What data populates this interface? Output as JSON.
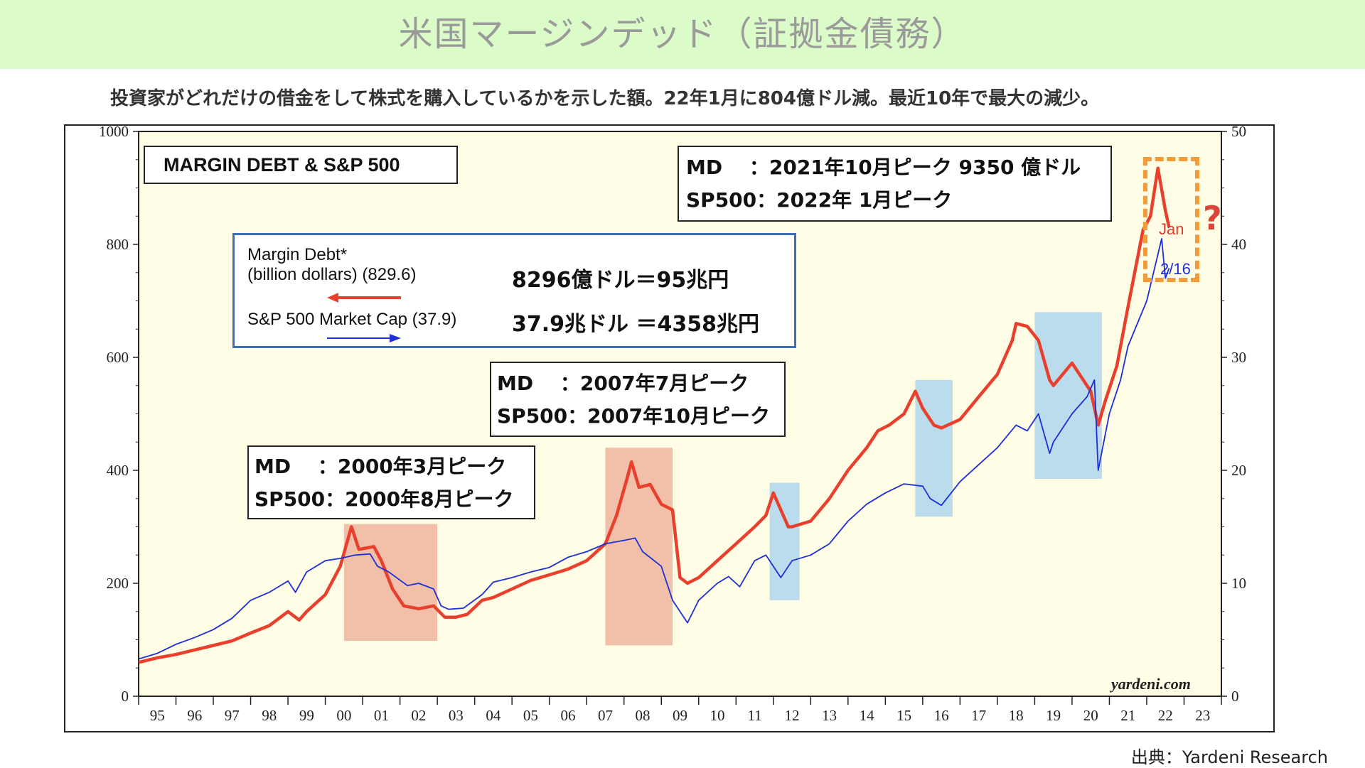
{
  "header": {
    "title": "米国マージンデッド（証拠金債務）",
    "subtitle": "投資家がどれだけの借金をして株式を購入しているかを示した額。22年1月に804億ドル減。最近10年で最大の減少。"
  },
  "footer": {
    "source": "出典：Yardeni Research"
  },
  "annotations": {
    "box_2021": {
      "line1": "MD　 ：2021年10月ピーク 9350 億ドル",
      "line2": "SP500：2022年  1月ピーク"
    },
    "box_2007": {
      "line1": "MD　 ：2007年7月ピーク",
      "line2": "SP500：2007年10月ピーク"
    },
    "box_2000": {
      "line1": "MD　 ：2000年3月ピーク",
      "line2": "SP500：2000年8月ピーク"
    },
    "legend": {
      "margin_label1": "Margin Debt*",
      "margin_label2": "(billion dollars) (829.6)",
      "margin_big": "8296億ドル＝95兆円",
      "sp_label": "S&P 500 Market Cap (37.9)",
      "sp_big": "37.9兆ドル ＝4358兆円"
    },
    "jan": "Jan",
    "date_216": "2/16",
    "question": "?",
    "watermark": "yardeni.com"
  },
  "colors": {
    "margin_debt": "#e8402c",
    "sp500": "#1d2fd6",
    "recession_band": "#f0b49e",
    "correction_band": "#a9d3ee",
    "plot_bg": "#fffde6",
    "highlight": "#f29b38"
  },
  "chart_data": {
    "type": "line",
    "title": "MARGIN DEBT & S&P 500",
    "x_ticks": [
      "95",
      "96",
      "97",
      "98",
      "99",
      "00",
      "01",
      "02",
      "03",
      "04",
      "05",
      "06",
      "07",
      "08",
      "09",
      "10",
      "11",
      "12",
      "13",
      "14",
      "15",
      "16",
      "17",
      "18",
      "19",
      "20",
      "21",
      "22",
      "23"
    ],
    "xlim": [
      1994.5,
      2023.5
    ],
    "y_left": {
      "lim": [
        0,
        1000
      ],
      "ticks": [
        0,
        200,
        400,
        600,
        800,
        1000
      ]
    },
    "y_right": {
      "lim": [
        0,
        50
      ],
      "ticks": [
        0,
        10,
        20,
        30,
        40,
        50
      ]
    },
    "series": [
      {
        "name": "Margin Debt* (billion dollars) (829.6)",
        "axis": "left",
        "points": [
          [
            1994.5,
            60
          ],
          [
            1995.0,
            68
          ],
          [
            1995.5,
            74
          ],
          [
            1996.0,
            82
          ],
          [
            1996.5,
            90
          ],
          [
            1997.0,
            98
          ],
          [
            1997.5,
            112
          ],
          [
            1998.0,
            125
          ],
          [
            1998.5,
            150
          ],
          [
            1998.8,
            135
          ],
          [
            1999.0,
            150
          ],
          [
            1999.5,
            180
          ],
          [
            1999.9,
            230
          ],
          [
            2000.2,
            300
          ],
          [
            2000.4,
            260
          ],
          [
            2000.8,
            265
          ],
          [
            2001.0,
            240
          ],
          [
            2001.3,
            190
          ],
          [
            2001.6,
            160
          ],
          [
            2002.0,
            155
          ],
          [
            2002.4,
            160
          ],
          [
            2002.7,
            140
          ],
          [
            2003.0,
            140
          ],
          [
            2003.3,
            145
          ],
          [
            2003.7,
            170
          ],
          [
            2004.0,
            175
          ],
          [
            2004.5,
            190
          ],
          [
            2005.0,
            205
          ],
          [
            2005.5,
            215
          ],
          [
            2006.0,
            225
          ],
          [
            2006.5,
            240
          ],
          [
            2007.0,
            270
          ],
          [
            2007.3,
            320
          ],
          [
            2007.6,
            390
          ],
          [
            2007.7,
            415
          ],
          [
            2007.9,
            370
          ],
          [
            2008.2,
            375
          ],
          [
            2008.5,
            340
          ],
          [
            2008.8,
            330
          ],
          [
            2009.0,
            210
          ],
          [
            2009.2,
            200
          ],
          [
            2009.5,
            210
          ],
          [
            2010.0,
            240
          ],
          [
            2010.5,
            270
          ],
          [
            2011.0,
            300
          ],
          [
            2011.3,
            320
          ],
          [
            2011.5,
            360
          ],
          [
            2011.7,
            330
          ],
          [
            2011.9,
            300
          ],
          [
            2012.0,
            300
          ],
          [
            2012.5,
            310
          ],
          [
            2013.0,
            350
          ],
          [
            2013.5,
            400
          ],
          [
            2014.0,
            440
          ],
          [
            2014.3,
            470
          ],
          [
            2014.6,
            480
          ],
          [
            2015.0,
            500
          ],
          [
            2015.3,
            540
          ],
          [
            2015.5,
            510
          ],
          [
            2015.8,
            480
          ],
          [
            2016.0,
            475
          ],
          [
            2016.5,
            490
          ],
          [
            2017.0,
            530
          ],
          [
            2017.5,
            570
          ],
          [
            2017.9,
            630
          ],
          [
            2018.0,
            660
          ],
          [
            2018.3,
            655
          ],
          [
            2018.6,
            630
          ],
          [
            2018.9,
            560
          ],
          [
            2019.0,
            550
          ],
          [
            2019.5,
            590
          ],
          [
            2019.8,
            560
          ],
          [
            2020.0,
            540
          ],
          [
            2020.2,
            480
          ],
          [
            2020.4,
            525
          ],
          [
            2020.7,
            585
          ],
          [
            2021.0,
            690
          ],
          [
            2021.4,
            825
          ],
          [
            2021.6,
            850
          ],
          [
            2021.8,
            935
          ],
          [
            2022.0,
            860
          ],
          [
            2022.1,
            830
          ]
        ]
      },
      {
        "name": "S&P 500 Market Cap (37.9)",
        "axis": "right",
        "points": [
          [
            1994.5,
            3.3
          ],
          [
            1995.0,
            3.8
          ],
          [
            1995.5,
            4.6
          ],
          [
            1996.0,
            5.2
          ],
          [
            1996.5,
            5.9
          ],
          [
            1997.0,
            6.9
          ],
          [
            1997.5,
            8.5
          ],
          [
            1998.0,
            9.2
          ],
          [
            1998.5,
            10.2
          ],
          [
            1998.7,
            9.2
          ],
          [
            1999.0,
            11.0
          ],
          [
            1999.5,
            12.0
          ],
          [
            1999.9,
            12.2
          ],
          [
            2000.3,
            12.5
          ],
          [
            2000.7,
            12.6
          ],
          [
            2000.9,
            11.5
          ],
          [
            2001.2,
            11.0
          ],
          [
            2001.7,
            9.8
          ],
          [
            2002.0,
            10.0
          ],
          [
            2002.4,
            9.5
          ],
          [
            2002.6,
            8.0
          ],
          [
            2002.8,
            7.7
          ],
          [
            2003.2,
            7.8
          ],
          [
            2003.7,
            9.0
          ],
          [
            2004.0,
            10.1
          ],
          [
            2004.5,
            10.5
          ],
          [
            2005.0,
            11.0
          ],
          [
            2005.5,
            11.4
          ],
          [
            2006.0,
            12.3
          ],
          [
            2006.5,
            12.8
          ],
          [
            2007.0,
            13.5
          ],
          [
            2007.5,
            13.8
          ],
          [
            2007.8,
            14.0
          ],
          [
            2008.0,
            12.8
          ],
          [
            2008.5,
            11.5
          ],
          [
            2008.8,
            8.5
          ],
          [
            2009.2,
            6.5
          ],
          [
            2009.5,
            8.5
          ],
          [
            2010.0,
            10.0
          ],
          [
            2010.3,
            10.6
          ],
          [
            2010.6,
            9.7
          ],
          [
            2011.0,
            12.0
          ],
          [
            2011.3,
            12.5
          ],
          [
            2011.7,
            10.5
          ],
          [
            2012.0,
            12.0
          ],
          [
            2012.5,
            12.5
          ],
          [
            2013.0,
            13.5
          ],
          [
            2013.5,
            15.5
          ],
          [
            2014.0,
            17.0
          ],
          [
            2014.5,
            18.0
          ],
          [
            2015.0,
            18.8
          ],
          [
            2015.5,
            18.6
          ],
          [
            2015.7,
            17.5
          ],
          [
            2016.0,
            16.9
          ],
          [
            2016.5,
            19.0
          ],
          [
            2017.0,
            20.5
          ],
          [
            2017.5,
            22.0
          ],
          [
            2018.0,
            24.0
          ],
          [
            2018.3,
            23.5
          ],
          [
            2018.6,
            25.0
          ],
          [
            2018.9,
            21.5
          ],
          [
            2019.0,
            22.5
          ],
          [
            2019.5,
            25.0
          ],
          [
            2019.9,
            26.5
          ],
          [
            2020.1,
            28.0
          ],
          [
            2020.2,
            20.0
          ],
          [
            2020.5,
            25.0
          ],
          [
            2020.8,
            28.0
          ],
          [
            2021.0,
            31.0
          ],
          [
            2021.5,
            35.0
          ],
          [
            2021.9,
            40.5
          ],
          [
            2022.0,
            37.0
          ],
          [
            2022.1,
            37.9
          ]
        ]
      }
    ],
    "bands": [
      {
        "kind": "recession",
        "x": [
          2000.0,
          2002.5
        ],
        "y": [
          98,
          305
        ]
      },
      {
        "kind": "recession",
        "x": [
          2007.0,
          2008.8
        ],
        "y": [
          90,
          440
        ]
      },
      {
        "kind": "correction",
        "x": [
          2011.4,
          2012.2
        ],
        "y": [
          170,
          378
        ]
      },
      {
        "kind": "correction",
        "x": [
          2015.3,
          2016.3
        ],
        "y": [
          318,
          560
        ]
      },
      {
        "kind": "correction",
        "x": [
          2018.5,
          2020.3
        ],
        "y": [
          385,
          680
        ]
      }
    ]
  }
}
